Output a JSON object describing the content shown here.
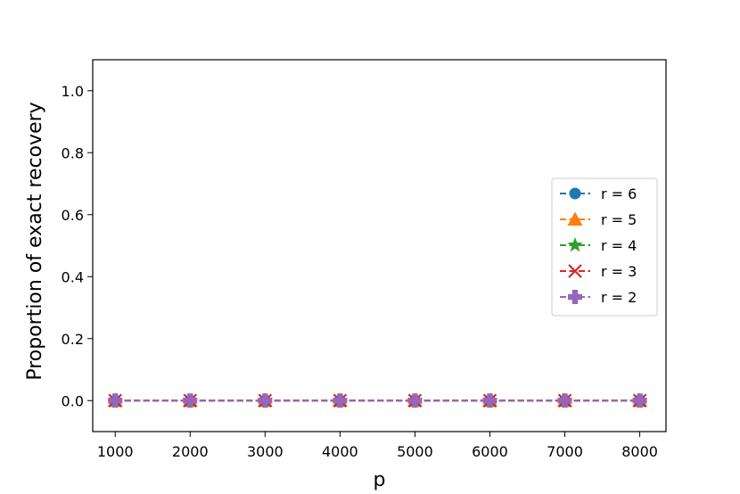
{
  "chart_data": {
    "type": "line",
    "xlabel": "p",
    "ylabel": "Proportion of exact recovery",
    "x": [
      1000,
      2000,
      3000,
      4000,
      5000,
      6000,
      7000,
      8000
    ],
    "xticks": [
      "1000",
      "2000",
      "3000",
      "4000",
      "5000",
      "6000",
      "7000",
      "8000"
    ],
    "yticks": [
      "0.0",
      "0.2",
      "0.4",
      "0.6",
      "0.8",
      "1.0"
    ],
    "xlim": [
      700,
      8350
    ],
    "ylim": [
      -0.1,
      1.1
    ],
    "grid": false,
    "legend_position": "center-right",
    "series": [
      {
        "name": "r = 6",
        "values": [
          0,
          0,
          0,
          0,
          0,
          0,
          0,
          0
        ],
        "color": "#1f77b4",
        "marker": "circle",
        "linestyle": "dashed"
      },
      {
        "name": "r = 5",
        "values": [
          0,
          0,
          0,
          0,
          0,
          0,
          0,
          0
        ],
        "color": "#ff7f0e",
        "marker": "triangle",
        "linestyle": "dashed"
      },
      {
        "name": "r = 4",
        "values": [
          0,
          0,
          0,
          0,
          0,
          0,
          0,
          0
        ],
        "color": "#2ca02c",
        "marker": "star",
        "linestyle": "dashed"
      },
      {
        "name": "r = 3",
        "values": [
          0,
          0,
          0,
          0,
          0,
          0,
          0,
          0
        ],
        "color": "#d62728",
        "marker": "x",
        "linestyle": "dashed"
      },
      {
        "name": "r = 2",
        "values": [
          0,
          0,
          0,
          0,
          0,
          0,
          0,
          0
        ],
        "color": "#9467bd",
        "marker": "plus",
        "linestyle": "dashed"
      }
    ]
  }
}
